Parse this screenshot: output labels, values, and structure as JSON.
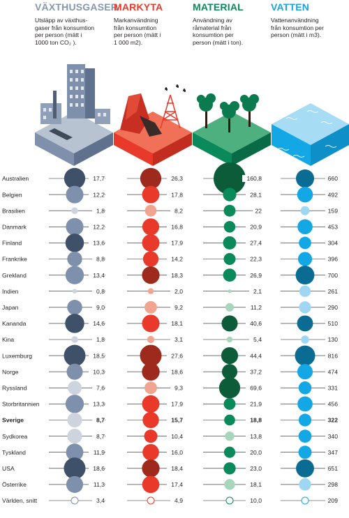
{
  "headers": [
    {
      "title": "VÄXTHUSGASER",
      "desc": [
        "Utsläpp av växthus-",
        "gaser från konsumtion",
        "per person (mätt i",
        "1000 ton CO₂ )."
      ],
      "color": "#8496b0"
    },
    {
      "title": "MARKYTA",
      "desc": [
        "Markanvändning",
        "från konsumtion",
        "per person (mätt i",
        "1 000 m2)."
      ],
      "color": "#e8392a"
    },
    {
      "title": "MATERIAL",
      "desc": [
        "Användning av",
        "råmaterial från",
        "konsumtion per",
        "person (mätt i ton)."
      ],
      "color": "#0a8a5a"
    },
    {
      "title": "VATTEN",
      "desc": [
        "Vattenanvändning",
        "från konsumtion per",
        "person (mätt i m3)."
      ],
      "color": "#1aa3e0"
    }
  ],
  "chart_data": {
    "type": "table",
    "columns": [
      "Växthusgaser",
      "Markyta",
      "Material",
      "Vatten"
    ],
    "rows": [
      {
        "country": "Australien",
        "values": [
          "17,7",
          "26,3",
          "160,8",
          "660"
        ],
        "num": [
          17.7,
          26.3,
          160.8,
          660
        ],
        "shade": [
          3,
          3,
          3,
          3
        ]
      },
      {
        "country": "Belgien",
        "values": [
          "12,2",
          "17,8",
          "28,1",
          "492"
        ],
        "num": [
          12.2,
          17.8,
          28.1,
          492
        ],
        "shade": [
          2,
          2,
          2,
          2
        ]
      },
      {
        "country": "Brasilien",
        "values": [
          "1,8",
          "8,2",
          "22",
          "159"
        ],
        "num": [
          1.8,
          8.2,
          22,
          159
        ],
        "shade": [
          1,
          1,
          2,
          1
        ]
      },
      {
        "country": "Danmark",
        "values": [
          "12,2",
          "16,8",
          "20,9",
          "453"
        ],
        "num": [
          12.2,
          16.8,
          20.9,
          453
        ],
        "shade": [
          2,
          2,
          2,
          2
        ]
      },
      {
        "country": "Finland",
        "values": [
          "13,6",
          "17,9",
          "27,4",
          "304"
        ],
        "num": [
          13.6,
          17.9,
          27.4,
          304
        ],
        "shade": [
          3,
          2,
          2,
          2
        ]
      },
      {
        "country": "Frankrike",
        "values": [
          "8,8",
          "14,2",
          "22,3",
          "396"
        ],
        "num": [
          8.8,
          14.2,
          22.3,
          396
        ],
        "shade": [
          2,
          2,
          2,
          2
        ]
      },
      {
        "country": "Grekland",
        "values": [
          "13,4",
          "18,3",
          "26,9",
          "700"
        ],
        "num": [
          13.4,
          18.3,
          26.9,
          700
        ],
        "shade": [
          2,
          3,
          2,
          3
        ]
      },
      {
        "country": "Indien",
        "values": [
          "0,8",
          "2,0",
          "2,1",
          "261"
        ],
        "num": [
          0.8,
          2.0,
          2.1,
          261
        ],
        "shade": [
          1,
          1,
          1,
          1
        ]
      },
      {
        "country": "Japan",
        "values": [
          "9,0",
          "9,2",
          "11,2",
          "290"
        ],
        "num": [
          9.0,
          9.2,
          11.2,
          290
        ],
        "shade": [
          2,
          1,
          1,
          1
        ]
      },
      {
        "country": "Kananda",
        "values": [
          "14,6",
          "18,1",
          "40,6",
          "510"
        ],
        "num": [
          14.6,
          18.1,
          40.6,
          510
        ],
        "shade": [
          3,
          2,
          3,
          3
        ]
      },
      {
        "country": "Kina",
        "values": [
          "1,8",
          "3,1",
          "5,4",
          "130"
        ],
        "num": [
          1.8,
          3.1,
          5.4,
          130
        ],
        "shade": [
          1,
          1,
          1,
          1
        ]
      },
      {
        "country": "Luxemburg",
        "values": [
          "18,5",
          "27,6",
          "44,4",
          "816"
        ],
        "num": [
          18.5,
          27.6,
          44.4,
          816
        ],
        "shade": [
          3,
          3,
          3,
          3
        ]
      },
      {
        "country": "Norge",
        "values": [
          "10,3",
          "18,6",
          "37,2",
          "474"
        ],
        "num": [
          10.3,
          18.6,
          37.2,
          474
        ],
        "shade": [
          2,
          3,
          3,
          2
        ]
      },
      {
        "country": "Ryssland",
        "values": [
          "7,6",
          "9,3",
          "69,6",
          "331"
        ],
        "num": [
          7.6,
          9.3,
          69.6,
          331
        ],
        "shade": [
          1,
          1,
          3,
          2
        ]
      },
      {
        "country": "Storbritannien",
        "values": [
          "13,3",
          "17,9",
          "21,9",
          "456"
        ],
        "num": [
          13.3,
          17.9,
          21.9,
          456
        ],
        "shade": [
          2,
          2,
          2,
          2
        ]
      },
      {
        "country": "Sverige",
        "values": [
          "8,7",
          "15,7",
          "18,8",
          "322"
        ],
        "num": [
          8.7,
          15.7,
          18.8,
          322
        ],
        "shade": [
          1,
          2,
          2,
          2
        ],
        "bold": true
      },
      {
        "country": "Sydkorea",
        "values": [
          "8,7",
          "10,4",
          "13,8",
          "340"
        ],
        "num": [
          8.7,
          10.4,
          13.8,
          340
        ],
        "shade": [
          1,
          2,
          1,
          2
        ]
      },
      {
        "country": "Tyskland",
        "values": [
          "11,9",
          "16,0",
          "20,0",
          "347"
        ],
        "num": [
          11.9,
          16.0,
          20.0,
          347
        ],
        "shade": [
          2,
          2,
          2,
          2
        ]
      },
      {
        "country": "USA",
        "values": [
          "18,6",
          "18,4",
          "23,0",
          "651"
        ],
        "num": [
          18.6,
          18.4,
          23.0,
          651
        ],
        "shade": [
          3,
          3,
          2,
          3
        ]
      },
      {
        "country": "Österrike",
        "values": [
          "11,3",
          "17,4",
          "18,1",
          "298"
        ],
        "num": [
          11.3,
          17.4,
          18.1,
          298
        ],
        "shade": [
          2,
          2,
          1,
          1
        ]
      },
      {
        "country": "Världen, snitt",
        "values": [
          "3,4",
          "4,9",
          "10,0",
          "209"
        ],
        "num": [
          3.4,
          4.9,
          10.0,
          209
        ],
        "shade": [
          0,
          0,
          0,
          0
        ]
      }
    ]
  },
  "palettes": [
    [
      "#ffffff",
      "#cdd4de",
      "#7e90ab",
      "#3f5069"
    ],
    [
      "#ffffff",
      "#f0a590",
      "#e8392a",
      "#9e2a1d"
    ],
    [
      "#ffffff",
      "#a8d6bd",
      "#0a8a5a",
      "#0c5c3a"
    ],
    [
      "#ffffff",
      "#9fd6f2",
      "#14a7e6",
      "#0a6c93"
    ]
  ]
}
